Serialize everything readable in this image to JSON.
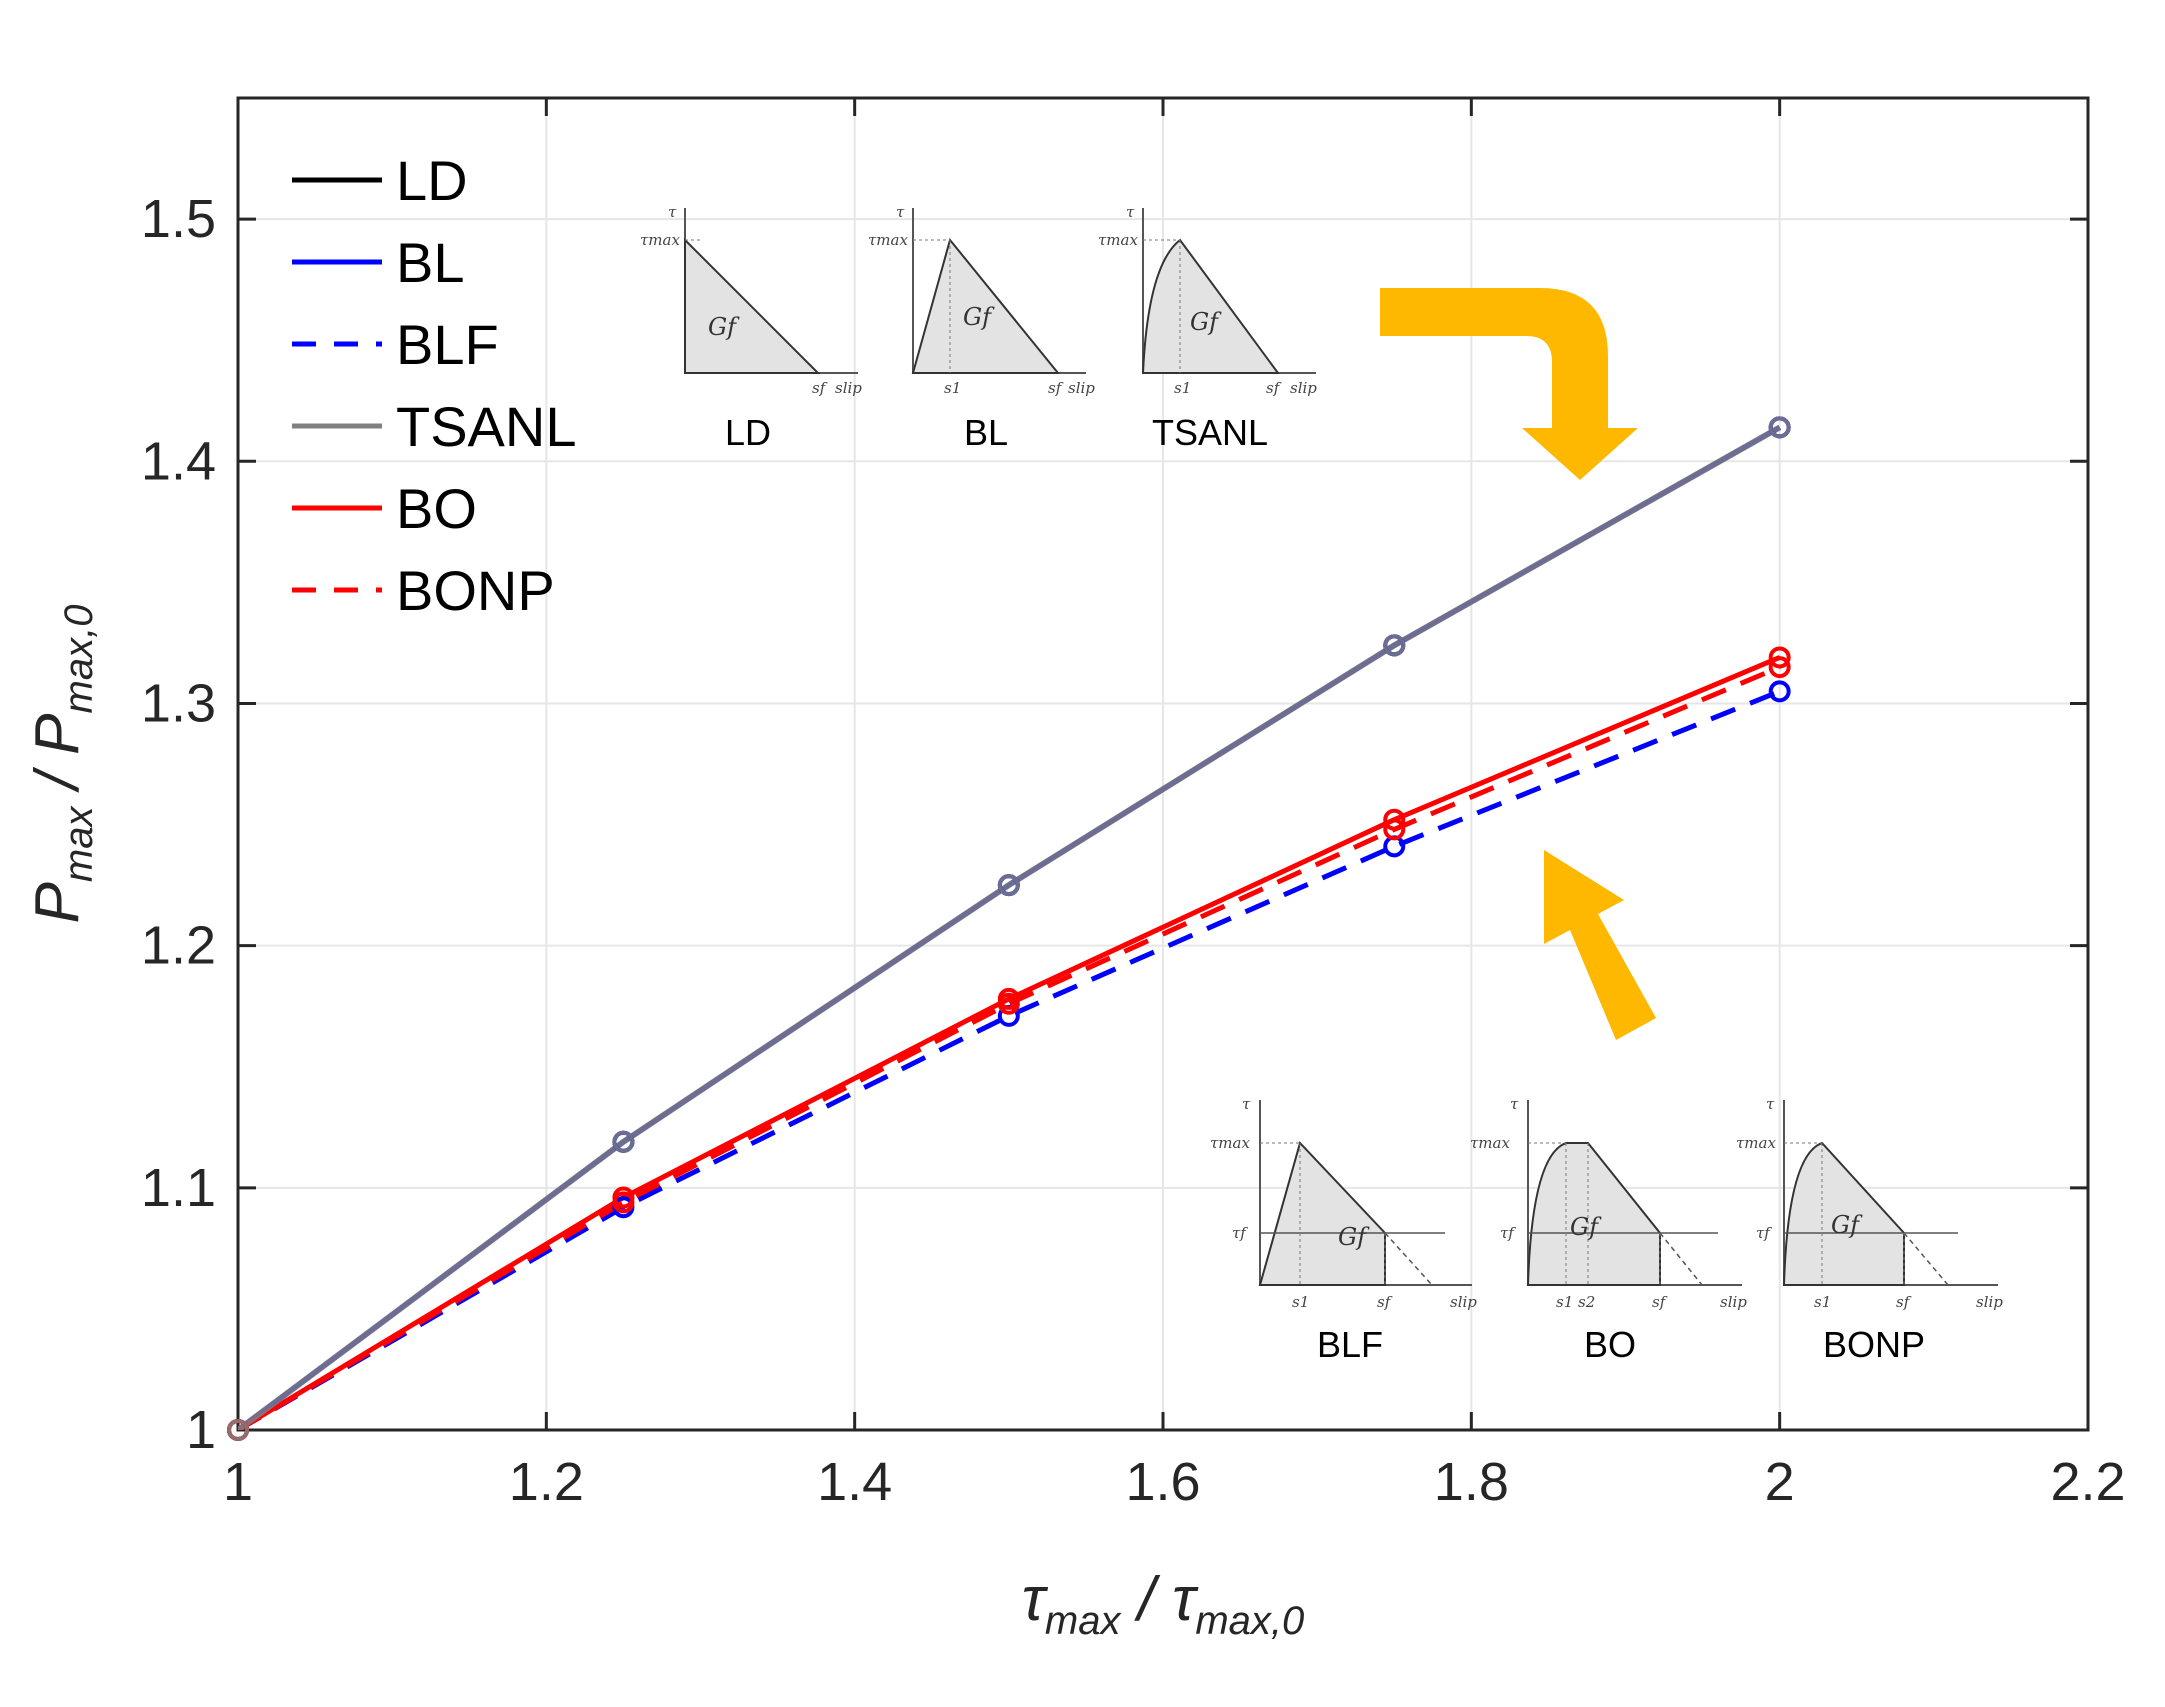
{
  "chart_data": {
    "type": "line",
    "title": "",
    "xlabel": {
      "main": "τ",
      "sub": "max",
      "sep": " / ",
      "main2": "τ",
      "sub2": "max,0"
    },
    "ylabel": {
      "main": "P",
      "sub": "max",
      "sep": " / ",
      "main2": "P",
      "sub2": "max,0"
    },
    "xlim": [
      1,
      2.2
    ],
    "ylim": [
      1,
      1.55
    ],
    "xticks": [
      "1",
      "1.2",
      "1.4",
      "1.6",
      "1.8",
      "2",
      "2.2"
    ],
    "yticks": [
      "1",
      "1.1",
      "1.2",
      "1.3",
      "1.4",
      "1.5"
    ],
    "grid": true,
    "legend_position": "top-left",
    "x": [
      1,
      1.25,
      1.5,
      1.75,
      2
    ],
    "series": [
      {
        "name": "LD",
        "color": "#000000",
        "dash": "solid",
        "values": [
          1,
          1.119,
          1.225,
          1.324,
          1.414
        ]
      },
      {
        "name": "BL",
        "color": "#0000ff",
        "dash": "solid",
        "values": [
          1,
          1.119,
          1.225,
          1.324,
          1.414
        ]
      },
      {
        "name": "BLF",
        "color": "#0000ff",
        "dash": "dashed",
        "values": [
          1,
          1.092,
          1.171,
          1.241,
          1.305
        ]
      },
      {
        "name": "TSANL",
        "color": "#808080",
        "dash": "solid",
        "values": [
          1,
          1.119,
          1.225,
          1.324,
          1.414
        ]
      },
      {
        "name": "BO",
        "color": "#ff0000",
        "dash": "solid",
        "values": [
          1,
          1.096,
          1.178,
          1.252,
          1.319
        ]
      },
      {
        "name": "BONP",
        "color": "#ff0000",
        "dash": "dashed",
        "values": [
          1,
          1.094,
          1.176,
          1.248,
          1.315
        ]
      }
    ],
    "insets": {
      "top": [
        {
          "caption": "LD",
          "labels": {
            "tau": "τ",
            "tmax": "τmax",
            "gf": "Gf",
            "sf": "sf",
            "slip": "slip"
          }
        },
        {
          "caption": "BL",
          "labels": {
            "tau": "τ",
            "tmax": "τmax",
            "gf": "Gf",
            "s1": "s1",
            "sf": "sf",
            "slip": "slip"
          }
        },
        {
          "caption": "TSANL",
          "labels": {
            "tau": "τ",
            "tmax": "τmax",
            "gf": "Gf",
            "s1": "s1",
            "sf": "sf",
            "slip": "slip"
          }
        }
      ],
      "bottom": [
        {
          "caption": "BLF",
          "labels": {
            "tau": "τ",
            "tmax": "τmax",
            "tf": "τf",
            "gf": "Gf",
            "s1": "s1",
            "sf": "sf",
            "slip": "slip"
          }
        },
        {
          "caption": "BO",
          "labels": {
            "tau": "τ",
            "tmax": "τmax",
            "tf": "τf",
            "gf": "Gf",
            "s1s2": "s1 s2",
            "sf": "sf",
            "slip": "slip"
          }
        },
        {
          "caption": "BONP",
          "labels": {
            "tau": "τ",
            "tmax": "τmax",
            "tf": "τf",
            "gf": "Gf",
            "s1": "s1",
            "sf": "sf",
            "slip": "slip"
          }
        }
      ]
    },
    "arrow_color": "#ffb800"
  }
}
